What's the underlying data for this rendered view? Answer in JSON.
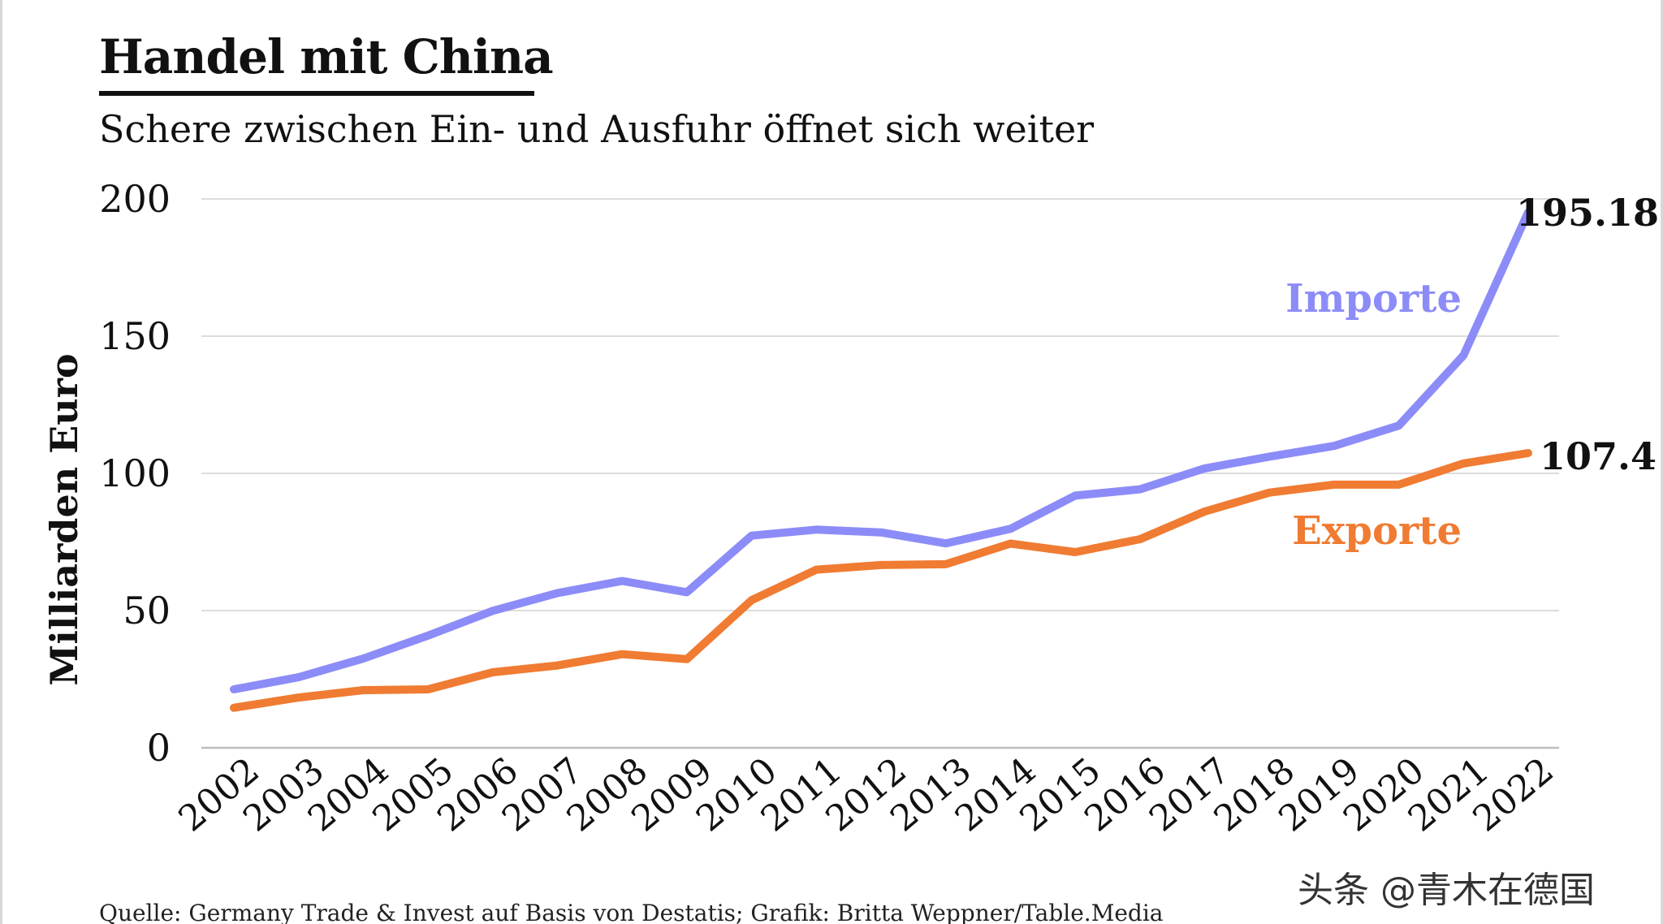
{
  "chart_data": {
    "type": "line",
    "title": "Handel mit China",
    "subtitle": "Schere zwischen Ein- und Ausfuhr öffnet sich weiter",
    "xlabel": "",
    "ylabel": "Milliarden Euro",
    "ylim": [
      0,
      200
    ],
    "yticks": [
      "0",
      "50",
      "100",
      "150",
      "200"
    ],
    "ytick_values": [
      0,
      50,
      100,
      150,
      200
    ],
    "grid": true,
    "categories": [
      "2002",
      "2003",
      "2004",
      "2005",
      "2006",
      "2007",
      "2008",
      "2009",
      "2010",
      "2011",
      "2012",
      "2013",
      "2014",
      "2015",
      "2016",
      "2017",
      "2018",
      "2019",
      "2020",
      "2021",
      "2022"
    ],
    "series": [
      {
        "name": "Importe",
        "color": "#8c8cf8",
        "values": [
          21.3,
          25.7,
          32.5,
          40.9,
          49.9,
          56.4,
          60.8,
          56.7,
          77.3,
          79.5,
          78.5,
          74.5,
          79.8,
          91.9,
          94.2,
          101.8,
          106.1,
          110.0,
          117.4,
          143.0,
          195.18
        ]
      },
      {
        "name": "Exporte",
        "color": "#f07b32",
        "values": [
          14.6,
          18.3,
          21.0,
          21.3,
          27.5,
          30.0,
          34.1,
          32.3,
          53.8,
          64.9,
          66.6,
          66.9,
          74.4,
          71.3,
          76.0,
          86.1,
          93.0,
          95.9,
          95.9,
          103.6,
          107.4
        ]
      }
    ],
    "end_labels": [
      "195.18",
      "107.4"
    ]
  },
  "source": "Quelle: Germany Trade & Invest auf Basis von Destatis; Grafik: Britta Weppner/Table.Media",
  "watermark": "头条 @青木在德国"
}
